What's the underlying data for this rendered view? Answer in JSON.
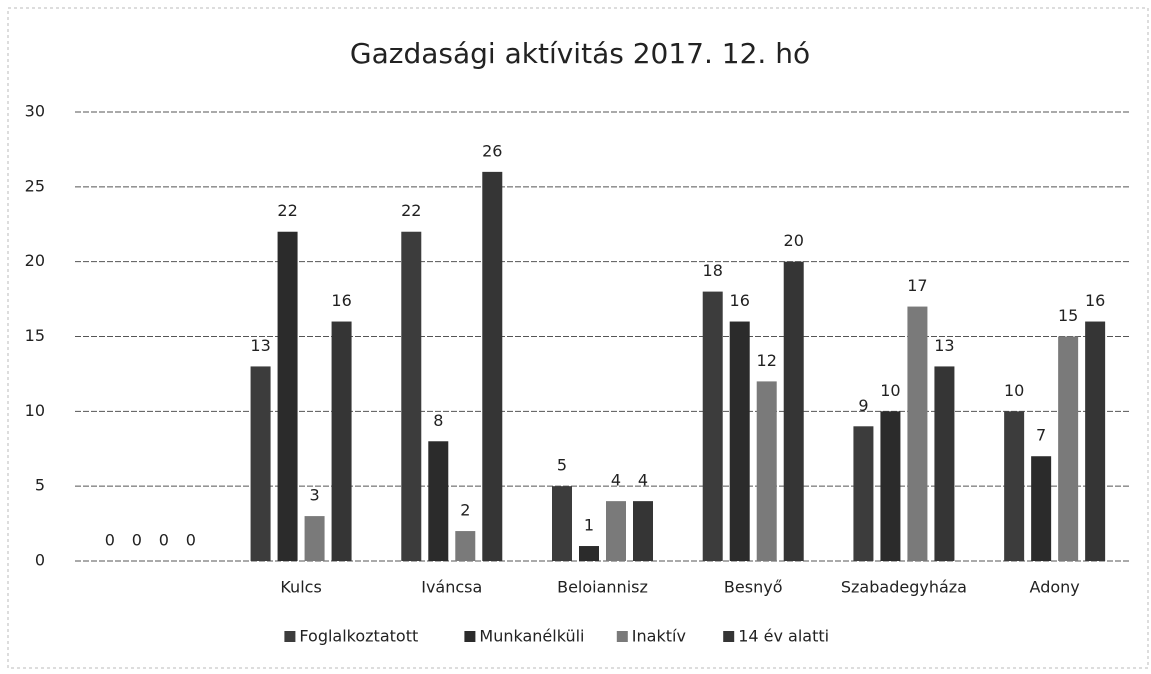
{
  "chart_data": {
    "type": "bar",
    "title": "Gazdasági aktívitás 2017. 12. hó",
    "categories": [
      null,
      "Kulcs",
      "Iváncsa",
      "Beloiannisz",
      "Besnyő",
      "Szabadegyháza",
      "Adony"
    ],
    "series": [
      {
        "name": "Foglalkoztatott",
        "color": "#3c3c3c",
        "values": [
          0,
          13,
          22,
          5,
          18,
          9,
          10
        ]
      },
      {
        "name": "Munkanélküli",
        "color": "#2b2b2b",
        "values": [
          0,
          22,
          8,
          1,
          16,
          10,
          7
        ]
      },
      {
        "name": "Inaktív",
        "color": "#7a7a7a",
        "values": [
          0,
          3,
          2,
          4,
          12,
          17,
          15
        ]
      },
      {
        "name": "14 év alatti",
        "color": "#353535",
        "values": [
          0,
          16,
          26,
          4,
          20,
          13,
          16
        ]
      }
    ],
    "ylim": [
      0,
      30
    ],
    "yticks": [
      0,
      5,
      10,
      15,
      20,
      25,
      30
    ],
    "grid": true,
    "legend": "bottom"
  }
}
